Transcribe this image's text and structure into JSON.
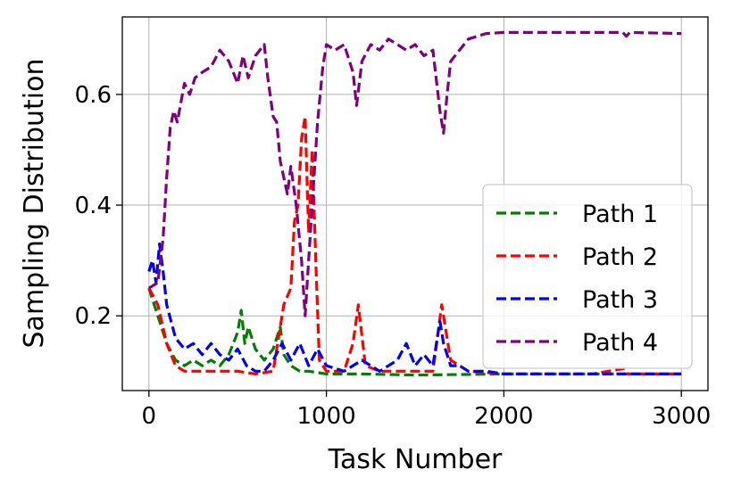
{
  "chart_data": {
    "type": "line",
    "title": "",
    "xlabel": "Task Number",
    "ylabel": "Sampling Distribution",
    "xlim": [
      -150,
      3150
    ],
    "ylim": [
      0.065,
      0.74
    ],
    "xticks": [
      0,
      1000,
      2000,
      3000
    ],
    "xtick_labels": [
      "0",
      "1000",
      "2000",
      "3000"
    ],
    "yticks": [
      0.2,
      0.4,
      0.6
    ],
    "ytick_labels": [
      "0.2",
      "0.4",
      "0.6"
    ],
    "grid": true,
    "legend": {
      "position": "bottom-right"
    },
    "series": [
      {
        "name": "Path 1",
        "color": "#008000",
        "x": [
          0,
          50,
          100,
          150,
          200,
          250,
          300,
          350,
          400,
          450,
          500,
          520,
          540,
          560,
          600,
          650,
          700,
          740,
          760,
          800,
          850,
          900,
          1000,
          1200,
          1500,
          2000,
          2500,
          3000
        ],
        "y": [
          0.25,
          0.2,
          0.15,
          0.12,
          0.11,
          0.12,
          0.11,
          0.12,
          0.11,
          0.13,
          0.17,
          0.21,
          0.15,
          0.18,
          0.14,
          0.12,
          0.14,
          0.18,
          0.13,
          0.11,
          0.1,
          0.1,
          0.095,
          0.095,
          0.093,
          0.095,
          0.095,
          0.095
        ]
      },
      {
        "name": "Path 2",
        "color": "#ff0000",
        "x": [
          0,
          50,
          100,
          150,
          200,
          300,
          400,
          500,
          600,
          700,
          760,
          800,
          820,
          840,
          860,
          880,
          900,
          920,
          940,
          960,
          1000,
          1100,
          1150,
          1180,
          1220,
          1300,
          1400,
          1500,
          1600,
          1650,
          1700,
          1800,
          2000,
          2500,
          2680,
          2700,
          3000
        ],
        "y": [
          0.25,
          0.22,
          0.15,
          0.11,
          0.1,
          0.1,
          0.1,
          0.1,
          0.095,
          0.1,
          0.22,
          0.25,
          0.37,
          0.4,
          0.52,
          0.56,
          0.35,
          0.5,
          0.3,
          0.12,
          0.1,
          0.1,
          0.15,
          0.22,
          0.11,
          0.1,
          0.1,
          0.1,
          0.1,
          0.22,
          0.12,
          0.1,
          0.095,
          0.095,
          0.105,
          0.095,
          0.095
        ]
      },
      {
        "name": "Path 3",
        "color": "#0000ff",
        "x": [
          0,
          20,
          40,
          60,
          80,
          100,
          150,
          200,
          250,
          300,
          350,
          400,
          450,
          500,
          550,
          600,
          650,
          700,
          750,
          800,
          850,
          900,
          950,
          1000,
          1100,
          1200,
          1300,
          1400,
          1450,
          1500,
          1550,
          1600,
          1640,
          1660,
          1700,
          1750,
          1800,
          1900,
          2000,
          2500,
          3000
        ],
        "y": [
          0.28,
          0.3,
          0.26,
          0.33,
          0.28,
          0.22,
          0.16,
          0.14,
          0.15,
          0.13,
          0.15,
          0.13,
          0.12,
          0.14,
          0.11,
          0.1,
          0.1,
          0.12,
          0.15,
          0.12,
          0.15,
          0.11,
          0.14,
          0.11,
          0.1,
          0.12,
          0.1,
          0.12,
          0.15,
          0.11,
          0.13,
          0.11,
          0.19,
          0.15,
          0.11,
          0.11,
          0.1,
          0.1,
          0.095,
          0.095,
          0.095
        ]
      },
      {
        "name": "Path 4",
        "color": "#800080",
        "x": [
          0,
          50,
          80,
          100,
          120,
          140,
          160,
          200,
          230,
          260,
          300,
          350,
          400,
          450,
          500,
          530,
          560,
          600,
          650,
          670,
          700,
          720,
          740,
          760,
          780,
          800,
          830,
          860,
          880,
          900,
          920,
          950,
          980,
          1000,
          1050,
          1100,
          1150,
          1170,
          1200,
          1250,
          1300,
          1350,
          1400,
          1450,
          1500,
          1550,
          1600,
          1640,
          1660,
          1680,
          1700,
          1750,
          1800,
          1900,
          2000,
          2500,
          2670,
          2690,
          2710,
          3000
        ],
        "y": [
          0.25,
          0.26,
          0.34,
          0.45,
          0.54,
          0.57,
          0.55,
          0.62,
          0.6,
          0.63,
          0.64,
          0.65,
          0.68,
          0.66,
          0.62,
          0.67,
          0.63,
          0.67,
          0.69,
          0.63,
          0.56,
          0.55,
          0.48,
          0.45,
          0.42,
          0.47,
          0.4,
          0.3,
          0.2,
          0.3,
          0.4,
          0.55,
          0.65,
          0.69,
          0.68,
          0.69,
          0.64,
          0.58,
          0.66,
          0.69,
          0.68,
          0.7,
          0.69,
          0.68,
          0.69,
          0.67,
          0.68,
          0.57,
          0.53,
          0.6,
          0.66,
          0.68,
          0.7,
          0.71,
          0.712,
          0.712,
          0.712,
          0.705,
          0.712,
          0.71
        ]
      }
    ]
  }
}
